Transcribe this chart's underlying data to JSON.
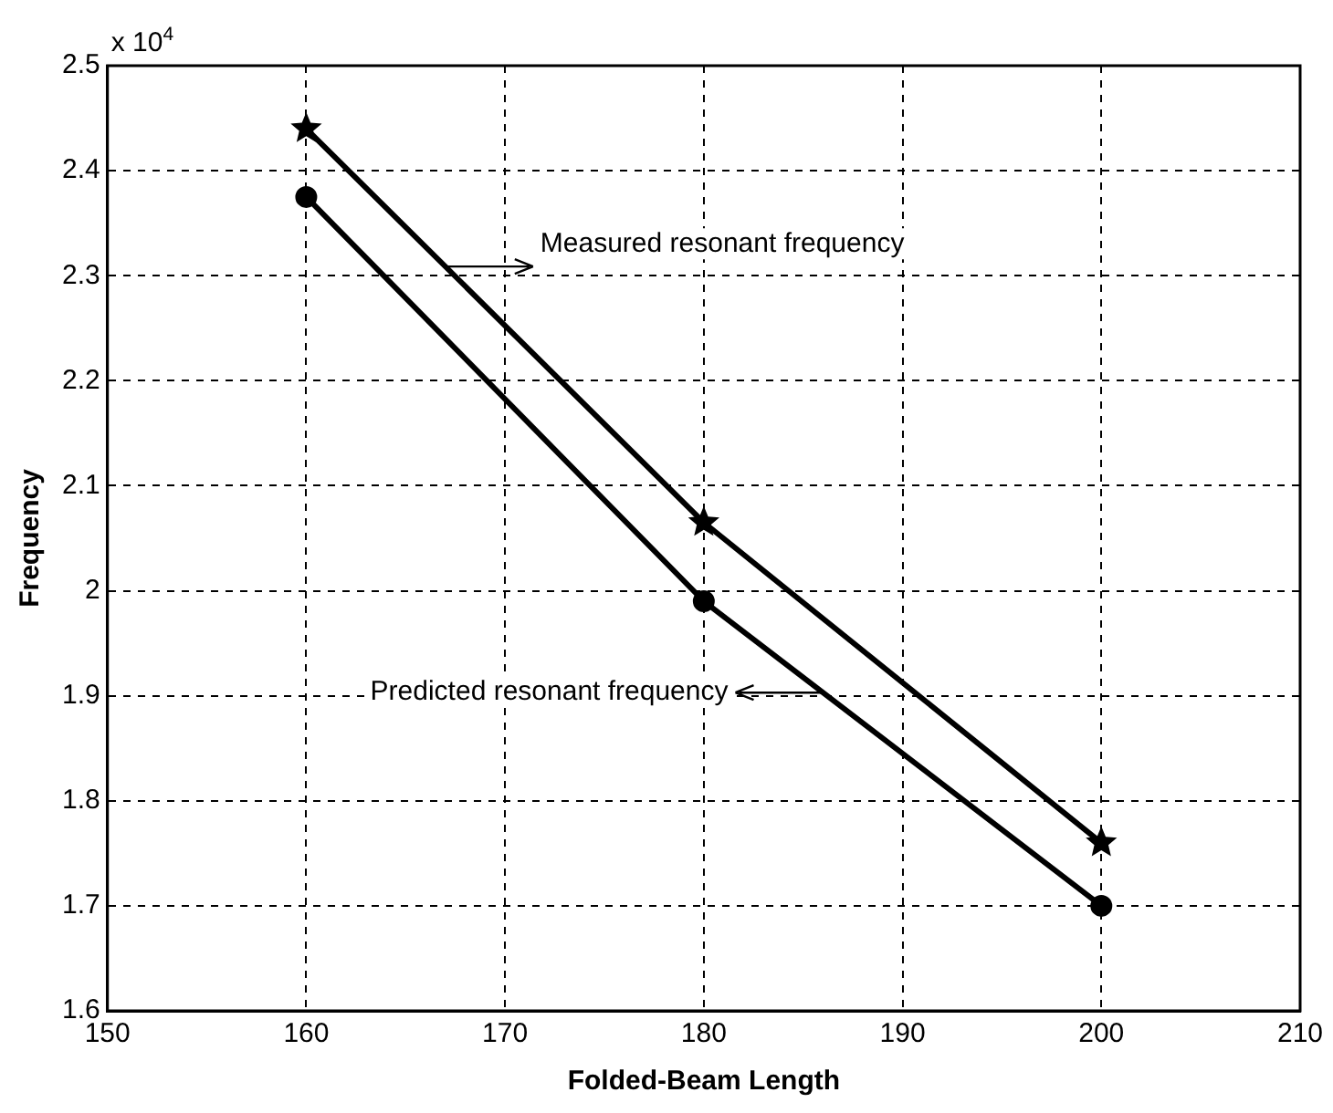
{
  "chart_data": {
    "type": "line",
    "xlabel": "Folded-Beam Length",
    "ylabel": "Frequency",
    "x": [
      160,
      180,
      200
    ],
    "series": [
      {
        "name": "Measured resonant frequency",
        "color": "#000000",
        "marker": "star",
        "values": [
          2.44,
          2.065,
          1.76
        ]
      },
      {
        "name": "Predicted resonant frequency",
        "color": "#000000",
        "marker": "circle",
        "values": [
          2.375,
          1.99,
          1.7
        ]
      }
    ],
    "xlim": [
      150,
      210
    ],
    "xticks": [
      150,
      160,
      170,
      180,
      190,
      200,
      210
    ],
    "ylim": [
      1.6,
      2.5
    ],
    "yticks": [
      1.6,
      1.7,
      1.8,
      1.9,
      2,
      2.1,
      2.2,
      2.3,
      2.4,
      2.5
    ],
    "grid": true,
    "line_style": "solid",
    "annotations": [
      "x 10$^{4}$"
    ]
  }
}
